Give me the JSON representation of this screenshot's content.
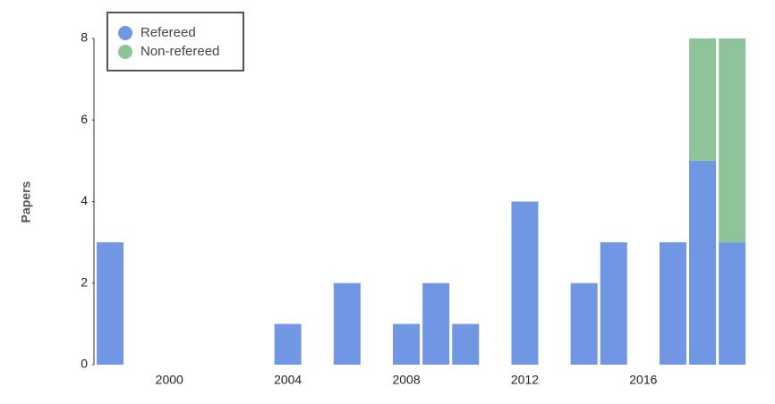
{
  "chart_data": {
    "type": "stacked-bar",
    "y_label": "Papers",
    "categories": [
      null,
      null,
      "2000",
      null,
      null,
      null,
      "2004",
      null,
      null,
      null,
      "2008",
      null,
      null,
      null,
      "2012",
      null,
      null,
      null,
      "2016",
      null,
      null,
      null
    ],
    "series": [
      {
        "name": "Refereed",
        "color": "#7096e4",
        "values": [
          3,
          0,
          0,
          0,
          0,
          0,
          1,
          0,
          2,
          0,
          1,
          2,
          1,
          0,
          4,
          0,
          2,
          3,
          0,
          3,
          5,
          3
        ]
      },
      {
        "name": "Non-refereed",
        "color": "#8fc49b",
        "values": [
          0,
          0,
          0,
          0,
          0,
          0,
          0,
          0,
          0,
          0,
          0,
          0,
          0,
          0,
          0,
          0,
          0,
          0,
          0,
          0,
          3,
          5
        ]
      }
    ],
    "ylim": [
      0,
      8
    ],
    "yticks": [
      0,
      2,
      4,
      6,
      8
    ],
    "legend": "top-left"
  }
}
